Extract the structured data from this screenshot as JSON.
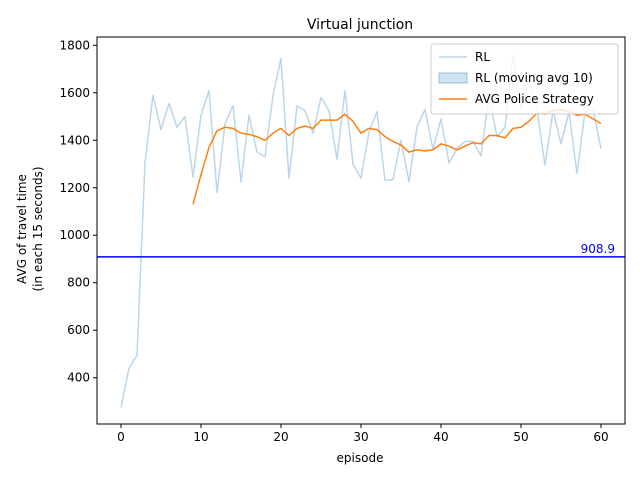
{
  "chart_data": {
    "type": "line",
    "title": "Virtual junction",
    "xlabel": "episode",
    "ylabel_lines": [
      "AVG of travel time",
      "(in each 15 seconds)"
    ],
    "xlim": [
      -3,
      63
    ],
    "ylim": [
      205,
      1835
    ],
    "xticks": [
      0,
      10,
      20,
      30,
      40,
      50,
      60
    ],
    "yticks": [
      400,
      600,
      800,
      1000,
      1200,
      1400,
      1600,
      1800
    ],
    "grid": false,
    "legend_position": "top-right",
    "reference_line": {
      "y": 908.9,
      "label": "908.9",
      "color": "#0000ff"
    },
    "series": [
      {
        "name": "RL",
        "color": "#1f77b4",
        "opacity": 0.3,
        "x": [
          0,
          1,
          2,
          3,
          4,
          5,
          6,
          7,
          8,
          9,
          10,
          11,
          12,
          13,
          14,
          15,
          16,
          17,
          18,
          19,
          20,
          21,
          22,
          23,
          24,
          25,
          26,
          27,
          28,
          29,
          30,
          31,
          32,
          33,
          34,
          35,
          36,
          37,
          38,
          39,
          40,
          41,
          42,
          43,
          44,
          45,
          46,
          47,
          48,
          49,
          50,
          51,
          52,
          53,
          54,
          55,
          56,
          57,
          58,
          59,
          60
        ],
        "values": [
          275,
          440,
          495,
          1305,
          1590,
          1445,
          1555,
          1455,
          1500,
          1245,
          1505,
          1610,
          1180,
          1470,
          1545,
          1225,
          1505,
          1350,
          1330,
          1590,
          1745,
          1240,
          1545,
          1525,
          1430,
          1580,
          1525,
          1320,
          1610,
          1300,
          1240,
          1435,
          1520,
          1230,
          1235,
          1400,
          1225,
          1455,
          1530,
          1360,
          1490,
          1305,
          1365,
          1395,
          1395,
          1335,
          1585,
          1415,
          1455,
          1760,
          1530,
          1650,
          1530,
          1295,
          1525,
          1385,
          1520,
          1260,
          1520,
          1530,
          1365
        ]
      },
      {
        "name": "RL (moving avg 10)",
        "color": "#1f77b4",
        "opacity": 0.2,
        "legend_only": true
      },
      {
        "name": "AVG Police Strategy",
        "color": "#ff7f0e",
        "opacity": 1,
        "x": [
          9,
          10,
          11,
          12,
          13,
          14,
          15,
          16,
          17,
          18,
          19,
          20,
          21,
          22,
          23,
          24,
          25,
          26,
          27,
          28,
          29,
          30,
          31,
          32,
          33,
          34,
          35,
          36,
          37,
          38,
          39,
          40,
          41,
          42,
          43,
          44,
          45,
          46,
          47,
          48,
          49,
          50,
          51,
          52,
          53,
          54,
          55,
          56,
          57,
          58,
          59,
          60
        ],
        "values": [
          1130,
          1255,
          1370,
          1440,
          1455,
          1450,
          1430,
          1425,
          1415,
          1400,
          1430,
          1450,
          1420,
          1450,
          1460,
          1450,
          1485,
          1485,
          1485,
          1510,
          1480,
          1430,
          1450,
          1445,
          1415,
          1395,
          1380,
          1350,
          1360,
          1355,
          1360,
          1385,
          1375,
          1360,
          1375,
          1390,
          1385,
          1420,
          1420,
          1410,
          1450,
          1455,
          1480,
          1515,
          1510,
          1525,
          1530,
          1520,
          1505,
          1510,
          1490,
          1470
        ]
      }
    ]
  }
}
